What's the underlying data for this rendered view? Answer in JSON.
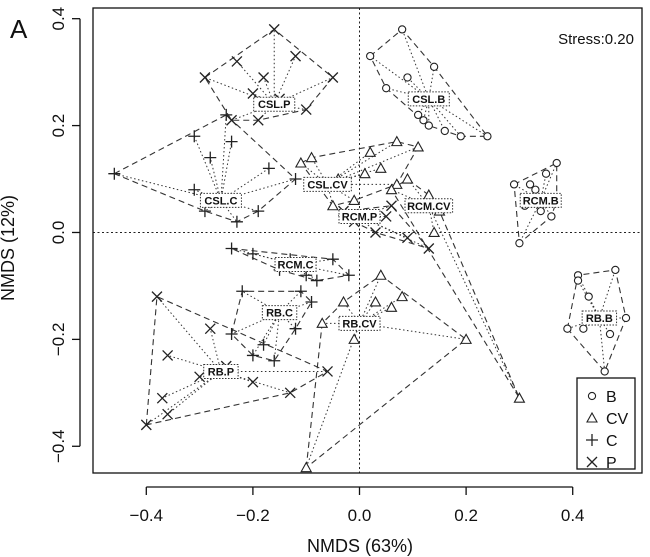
{
  "panel_label": "A",
  "chart_data": {
    "type": "scatter",
    "title": "",
    "xlabel": "NMDS (63%)",
    "ylabel": "NMDS (12%)",
    "xlim": [
      -0.5,
      0.53
    ],
    "ylim": [
      -0.45,
      0.42
    ],
    "xticks": [
      "−0.4",
      "−0.2",
      "0.0",
      "0.2",
      "0.4"
    ],
    "yticks": [
      "−0.4",
      "−0.2",
      "0.0",
      "0.2",
      "0.4"
    ],
    "xtick_values": [
      -0.4,
      -0.2,
      0.0,
      0.2,
      0.4
    ],
    "ytick_values": [
      -0.4,
      -0.2,
      0.0,
      0.2,
      0.4
    ],
    "annotation": "Stress:0.20",
    "grid": false,
    "reference_lines": {
      "x": 0,
      "y": 0
    },
    "legend_position": "bottom-right",
    "legend": [
      {
        "label": "B",
        "marker": "diamond"
      },
      {
        "label": "CV",
        "marker": "triangle"
      },
      {
        "label": "C",
        "marker": "plus"
      },
      {
        "label": "P",
        "marker": "cross"
      }
    ],
    "groups": [
      {
        "name": "CSL.B",
        "centroid": [
          0.13,
          0.25
        ],
        "points": [
          {
            "m": "diamond",
            "x": 0.08,
            "y": 0.38
          },
          {
            "m": "diamond",
            "x": 0.14,
            "y": 0.31
          },
          {
            "m": "diamond",
            "x": 0.02,
            "y": 0.33
          },
          {
            "m": "diamond",
            "x": 0.09,
            "y": 0.29
          },
          {
            "m": "diamond",
            "x": 0.24,
            "y": 0.18
          },
          {
            "m": "diamond",
            "x": 0.19,
            "y": 0.18
          },
          {
            "m": "diamond",
            "x": 0.16,
            "y": 0.19
          },
          {
            "m": "diamond",
            "x": 0.13,
            "y": 0.2
          },
          {
            "m": "diamond",
            "x": 0.12,
            "y": 0.21
          },
          {
            "m": "diamond",
            "x": 0.11,
            "y": 0.22
          },
          {
            "m": "diamond",
            "x": 0.05,
            "y": 0.27
          }
        ]
      },
      {
        "name": "CSL.CV",
        "centroid": [
          -0.06,
          0.09
        ],
        "points": [
          {
            "m": "triangle",
            "x": -0.09,
            "y": 0.14
          },
          {
            "m": "triangle",
            "x": -0.11,
            "y": 0.13
          },
          {
            "m": "triangle",
            "x": 0.02,
            "y": 0.15
          },
          {
            "m": "triangle",
            "x": 0.07,
            "y": 0.17
          },
          {
            "m": "triangle",
            "x": 0.11,
            "y": 0.16
          },
          {
            "m": "triangle",
            "x": 0.01,
            "y": 0.11
          },
          {
            "m": "triangle",
            "x": -0.04,
            "y": 0.1
          },
          {
            "m": "triangle",
            "x": 0.07,
            "y": 0.09
          },
          {
            "m": "triangle",
            "x": -0.05,
            "y": 0.05
          },
          {
            "m": "triangle",
            "x": 0.04,
            "y": 0.12
          },
          {
            "m": "triangle",
            "x": -0.01,
            "y": 0.06
          }
        ]
      },
      {
        "name": "CSL.C",
        "centroid": [
          -0.26,
          0.06
        ],
        "points": [
          {
            "m": "plus",
            "x": -0.46,
            "y": 0.11
          },
          {
            "m": "plus",
            "x": -0.31,
            "y": 0.18
          },
          {
            "m": "plus",
            "x": -0.31,
            "y": 0.08
          },
          {
            "m": "plus",
            "x": -0.28,
            "y": 0.14
          },
          {
            "m": "plus",
            "x": -0.25,
            "y": 0.22
          },
          {
            "m": "plus",
            "x": -0.24,
            "y": 0.17
          },
          {
            "m": "plus",
            "x": -0.29,
            "y": 0.04
          },
          {
            "m": "plus",
            "x": -0.23,
            "y": 0.02
          },
          {
            "m": "plus",
            "x": -0.19,
            "y": 0.04
          },
          {
            "m": "plus",
            "x": -0.17,
            "y": 0.12
          },
          {
            "m": "plus",
            "x": -0.12,
            "y": 0.1
          }
        ]
      },
      {
        "name": "CSL.P",
        "centroid": [
          -0.16,
          0.24
        ],
        "points": [
          {
            "m": "cross",
            "x": -0.16,
            "y": 0.38
          },
          {
            "m": "cross",
            "x": -0.23,
            "y": 0.32
          },
          {
            "m": "cross",
            "x": -0.29,
            "y": 0.29
          },
          {
            "m": "cross",
            "x": -0.18,
            "y": 0.29
          },
          {
            "m": "cross",
            "x": -0.05,
            "y": 0.29
          },
          {
            "m": "cross",
            "x": -0.12,
            "y": 0.33
          },
          {
            "m": "cross",
            "x": -0.2,
            "y": 0.26
          },
          {
            "m": "cross",
            "x": -0.24,
            "y": 0.21
          },
          {
            "m": "cross",
            "x": -0.19,
            "y": 0.21
          },
          {
            "m": "cross",
            "x": -0.15,
            "y": 0.25
          },
          {
            "m": "cross",
            "x": -0.1,
            "y": 0.23
          }
        ]
      },
      {
        "name": "RCM.B",
        "centroid": [
          0.34,
          0.06
        ],
        "points": [
          {
            "m": "diamond",
            "x": 0.29,
            "y": 0.09
          },
          {
            "m": "diamond",
            "x": 0.32,
            "y": 0.09
          },
          {
            "m": "diamond",
            "x": 0.35,
            "y": 0.11
          },
          {
            "m": "diamond",
            "x": 0.37,
            "y": 0.13
          },
          {
            "m": "diamond",
            "x": 0.37,
            "y": 0.06
          },
          {
            "m": "diamond",
            "x": 0.36,
            "y": 0.03
          },
          {
            "m": "diamond",
            "x": 0.34,
            "y": 0.04
          },
          {
            "m": "diamond",
            "x": 0.3,
            "y": -0.02
          },
          {
            "m": "diamond",
            "x": 0.33,
            "y": 0.08
          },
          {
            "m": "diamond",
            "x": 0.31,
            "y": 0.05
          }
        ]
      },
      {
        "name": "RCM.CV",
        "centroid": [
          0.13,
          0.05
        ],
        "points": [
          {
            "m": "triangle",
            "x": 0.13,
            "y": 0.07
          },
          {
            "m": "triangle",
            "x": 0.15,
            "y": 0.04
          },
          {
            "m": "triangle",
            "x": 0.14,
            "y": 0.0
          },
          {
            "m": "triangle",
            "x": 0.3,
            "y": -0.31
          },
          {
            "m": "triangle",
            "x": 0.09,
            "y": 0.1
          },
          {
            "m": "triangle",
            "x": 0.06,
            "y": 0.08
          },
          {
            "m": "triangle",
            "x": 0.1,
            "y": 0.05
          }
        ]
      },
      {
        "name": "RCM.C",
        "centroid": [
          -0.12,
          -0.06
        ],
        "points": [
          {
            "m": "plus",
            "x": -0.24,
            "y": -0.03
          },
          {
            "m": "plus",
            "x": -0.2,
            "y": -0.04
          },
          {
            "m": "plus",
            "x": -0.13,
            "y": -0.05
          },
          {
            "m": "plus",
            "x": -0.1,
            "y": -0.08
          },
          {
            "m": "plus",
            "x": -0.08,
            "y": -0.09
          },
          {
            "m": "plus",
            "x": -0.15,
            "y": -0.07
          },
          {
            "m": "plus",
            "x": -0.05,
            "y": -0.05
          },
          {
            "m": "plus",
            "x": -0.02,
            "y": -0.08
          }
        ]
      },
      {
        "name": "RCM.P",
        "centroid": [
          0.0,
          0.03
        ],
        "points": [
          {
            "m": "cross",
            "x": -0.01,
            "y": 0.02
          },
          {
            "m": "cross",
            "x": -0.03,
            "y": 0.04
          },
          {
            "m": "cross",
            "x": 0.05,
            "y": 0.03
          },
          {
            "m": "cross",
            "x": 0.09,
            "y": -0.01
          },
          {
            "m": "cross",
            "x": 0.13,
            "y": -0.03
          },
          {
            "m": "cross",
            "x": 0.06,
            "y": 0.05
          },
          {
            "m": "cross",
            "x": 0.03,
            "y": 0.0
          }
        ]
      },
      {
        "name": "RB.B",
        "centroid": [
          0.45,
          -0.16
        ],
        "points": [
          {
            "m": "diamond",
            "x": 0.41,
            "y": -0.08
          },
          {
            "m": "diamond",
            "x": 0.48,
            "y": -0.07
          },
          {
            "m": "diamond",
            "x": 0.5,
            "y": -0.16
          },
          {
            "m": "diamond",
            "x": 0.46,
            "y": -0.26
          },
          {
            "m": "diamond",
            "x": 0.42,
            "y": -0.18
          },
          {
            "m": "diamond",
            "x": 0.39,
            "y": -0.18
          },
          {
            "m": "diamond",
            "x": 0.43,
            "y": -0.12
          },
          {
            "m": "diamond",
            "x": 0.47,
            "y": -0.19
          },
          {
            "m": "diamond",
            "x": 0.41,
            "y": -0.09
          }
        ]
      },
      {
        "name": "RB.C",
        "centroid": [
          -0.15,
          -0.15
        ],
        "points": [
          {
            "m": "plus",
            "x": -0.22,
            "y": -0.11
          },
          {
            "m": "plus",
            "x": -0.11,
            "y": -0.11
          },
          {
            "m": "plus",
            "x": -0.09,
            "y": -0.13
          },
          {
            "m": "plus",
            "x": -0.24,
            "y": -0.19
          },
          {
            "m": "plus",
            "x": -0.18,
            "y": -0.21
          },
          {
            "m": "plus",
            "x": -0.12,
            "y": -0.18
          },
          {
            "m": "plus",
            "x": -0.2,
            "y": -0.23
          },
          {
            "m": "plus",
            "x": -0.16,
            "y": -0.24
          }
        ]
      },
      {
        "name": "RB.CV",
        "centroid": [
          -0.0,
          -0.17
        ],
        "points": [
          {
            "m": "triangle",
            "x": -0.1,
            "y": -0.44
          },
          {
            "m": "triangle",
            "x": 0.2,
            "y": -0.2
          },
          {
            "m": "triangle",
            "x": -0.03,
            "y": -0.13
          },
          {
            "m": "triangle",
            "x": 0.04,
            "y": -0.08
          },
          {
            "m": "triangle",
            "x": 0.08,
            "y": -0.12
          },
          {
            "m": "triangle",
            "x": -0.01,
            "y": -0.2
          },
          {
            "m": "triangle",
            "x": 0.03,
            "y": -0.13
          },
          {
            "m": "triangle",
            "x": 0.06,
            "y": -0.14
          },
          {
            "m": "triangle",
            "x": -0.07,
            "y": -0.17
          }
        ]
      },
      {
        "name": "RB.P",
        "centroid": [
          -0.26,
          -0.26
        ],
        "points": [
          {
            "m": "cross",
            "x": -0.4,
            "y": -0.36
          },
          {
            "m": "cross",
            "x": -0.37,
            "y": -0.31
          },
          {
            "m": "cross",
            "x": -0.36,
            "y": -0.34
          },
          {
            "m": "cross",
            "x": -0.36,
            "y": -0.23
          },
          {
            "m": "cross",
            "x": -0.3,
            "y": -0.27
          },
          {
            "m": "cross",
            "x": -0.28,
            "y": -0.18
          },
          {
            "m": "cross",
            "x": -0.25,
            "y": -0.25
          },
          {
            "m": "cross",
            "x": -0.2,
            "y": -0.28
          },
          {
            "m": "cross",
            "x": -0.13,
            "y": -0.3
          },
          {
            "m": "cross",
            "x": -0.38,
            "y": -0.12
          },
          {
            "m": "cross",
            "x": -0.06,
            "y": -0.26
          }
        ]
      }
    ]
  }
}
